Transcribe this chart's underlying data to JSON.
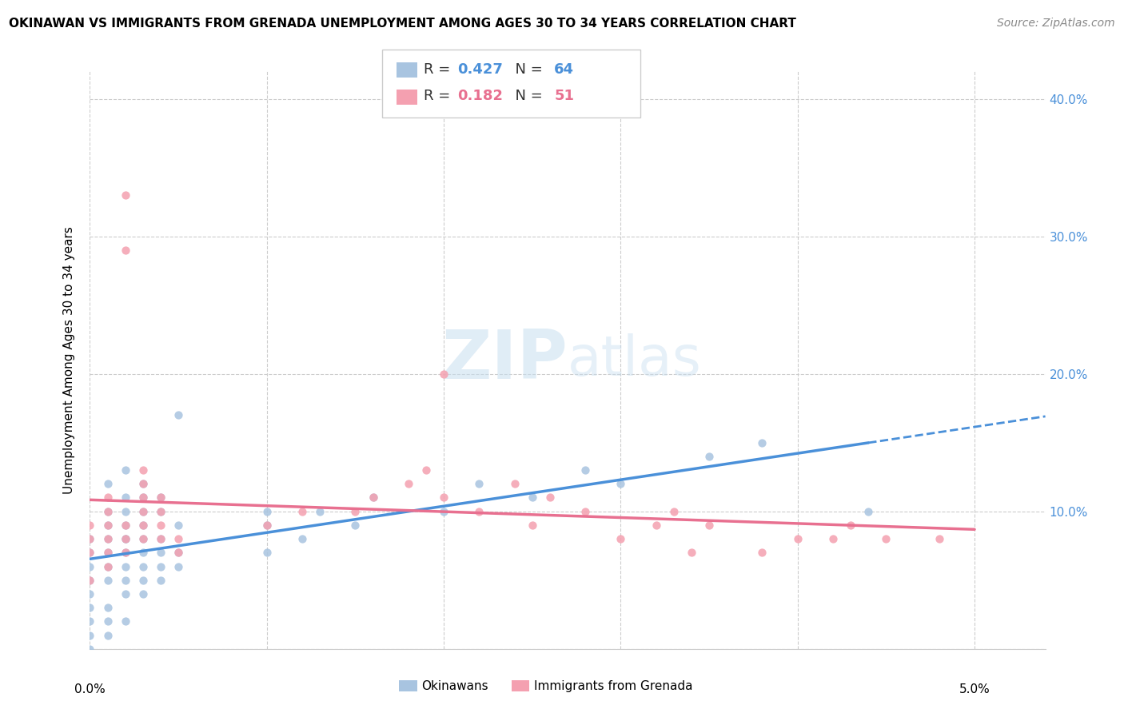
{
  "title": "OKINAWAN VS IMMIGRANTS FROM GRENADA UNEMPLOYMENT AMONG AGES 30 TO 34 YEARS CORRELATION CHART",
  "source": "Source: ZipAtlas.com",
  "ylabel": "Unemployment Among Ages 30 to 34 years",
  "r1": 0.427,
  "n1": 64,
  "r2": 0.182,
  "n2": 51,
  "color_blue": "#a8c4e0",
  "color_pink": "#f4a0b0",
  "trendline1_color": "#4a90d9",
  "trendline2_color": "#e87090",
  "okinawan_x": [
    0.0,
    0.0,
    0.0,
    0.0,
    0.0,
    0.0,
    0.0,
    0.0,
    0.0,
    0.001,
    0.001,
    0.001,
    0.001,
    0.001,
    0.001,
    0.001,
    0.001,
    0.001,
    0.001,
    0.002,
    0.002,
    0.002,
    0.002,
    0.002,
    0.002,
    0.002,
    0.002,
    0.002,
    0.002,
    0.002,
    0.003,
    0.003,
    0.003,
    0.003,
    0.003,
    0.003,
    0.003,
    0.003,
    0.003,
    0.004,
    0.004,
    0.004,
    0.004,
    0.004,
    0.004,
    0.005,
    0.005,
    0.005,
    0.005,
    0.01,
    0.01,
    0.01,
    0.012,
    0.013,
    0.015,
    0.016,
    0.02,
    0.022,
    0.025,
    0.028,
    0.03,
    0.035,
    0.038,
    0.044
  ],
  "okinawan_y": [
    0.0,
    0.01,
    0.02,
    0.03,
    0.04,
    0.05,
    0.06,
    0.07,
    0.08,
    0.01,
    0.02,
    0.03,
    0.05,
    0.06,
    0.07,
    0.08,
    0.09,
    0.1,
    0.12,
    0.02,
    0.04,
    0.05,
    0.06,
    0.07,
    0.08,
    0.08,
    0.09,
    0.1,
    0.11,
    0.13,
    0.04,
    0.05,
    0.06,
    0.07,
    0.08,
    0.09,
    0.1,
    0.11,
    0.12,
    0.05,
    0.06,
    0.07,
    0.08,
    0.1,
    0.11,
    0.06,
    0.07,
    0.09,
    0.17,
    0.07,
    0.09,
    0.1,
    0.08,
    0.1,
    0.09,
    0.11,
    0.1,
    0.12,
    0.11,
    0.13,
    0.12,
    0.14,
    0.15,
    0.1
  ],
  "grenada_x": [
    0.0,
    0.0,
    0.0,
    0.0,
    0.001,
    0.001,
    0.001,
    0.001,
    0.001,
    0.001,
    0.002,
    0.002,
    0.002,
    0.002,
    0.002,
    0.003,
    0.003,
    0.003,
    0.003,
    0.003,
    0.003,
    0.004,
    0.004,
    0.004,
    0.004,
    0.005,
    0.005,
    0.01,
    0.012,
    0.015,
    0.016,
    0.018,
    0.019,
    0.02,
    0.02,
    0.022,
    0.024,
    0.025,
    0.026,
    0.028,
    0.03,
    0.032,
    0.033,
    0.034,
    0.035,
    0.038,
    0.04,
    0.042,
    0.043,
    0.045,
    0.048
  ],
  "grenada_y": [
    0.05,
    0.07,
    0.08,
    0.09,
    0.06,
    0.07,
    0.08,
    0.09,
    0.1,
    0.11,
    0.07,
    0.08,
    0.09,
    0.29,
    0.33,
    0.08,
    0.09,
    0.1,
    0.11,
    0.12,
    0.13,
    0.08,
    0.09,
    0.1,
    0.11,
    0.07,
    0.08,
    0.09,
    0.1,
    0.1,
    0.11,
    0.12,
    0.13,
    0.11,
    0.2,
    0.1,
    0.12,
    0.09,
    0.11,
    0.1,
    0.08,
    0.09,
    0.1,
    0.07,
    0.09,
    0.07,
    0.08,
    0.08,
    0.09,
    0.08,
    0.08
  ],
  "xlim": [
    0.0,
    0.054
  ],
  "ylim": [
    0.0,
    0.42
  ],
  "yticks": [
    0.0,
    0.1,
    0.2,
    0.3,
    0.4
  ],
  "xticks": [
    0.0,
    0.01,
    0.02,
    0.03,
    0.04,
    0.05
  ]
}
